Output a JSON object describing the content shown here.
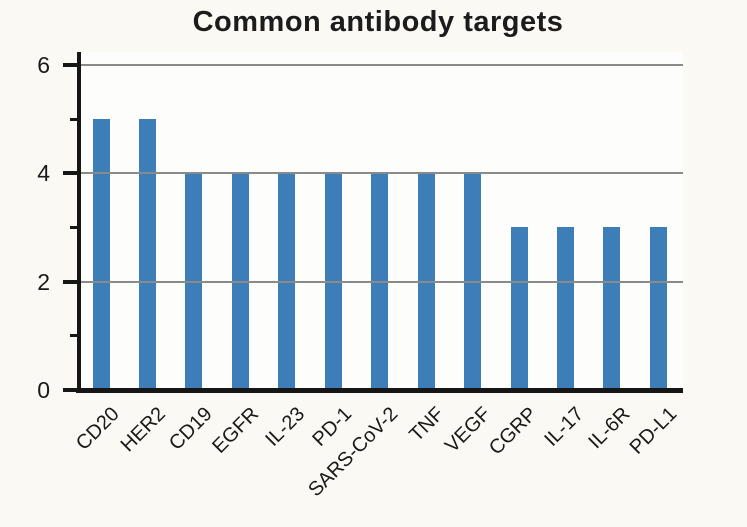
{
  "title": "Common antibody targets",
  "chart_data": {
    "type": "bar",
    "title": "Common antibody targets",
    "categories": [
      "CD20",
      "HER2",
      "CD19",
      "EGFR",
      "IL-23",
      "PD-1",
      "SARS-CoV-2",
      "TNF",
      "VEGF",
      "CGRP",
      "IL-17",
      "IL-6R",
      "PD-L1"
    ],
    "values": [
      5,
      5,
      4,
      4,
      4,
      4,
      4,
      4,
      4,
      3,
      3,
      3,
      3
    ],
    "xlabel": "",
    "ylabel": "",
    "ylim": [
      0,
      6
    ],
    "yticks_major": [
      0,
      2,
      4,
      6
    ],
    "yticks_minor": [
      1,
      3,
      5
    ],
    "grid": "horizontal gridlines at major y ticks, drawn over bars",
    "legend": "none",
    "bar_color": "#3d7eb8",
    "axis_color": "#161616",
    "gridline_color": "#8a8a8a",
    "background_color": "#faf9f4",
    "plot_background_color": "#fdfdfb",
    "x_tick_label_rotation_deg": 45
  }
}
